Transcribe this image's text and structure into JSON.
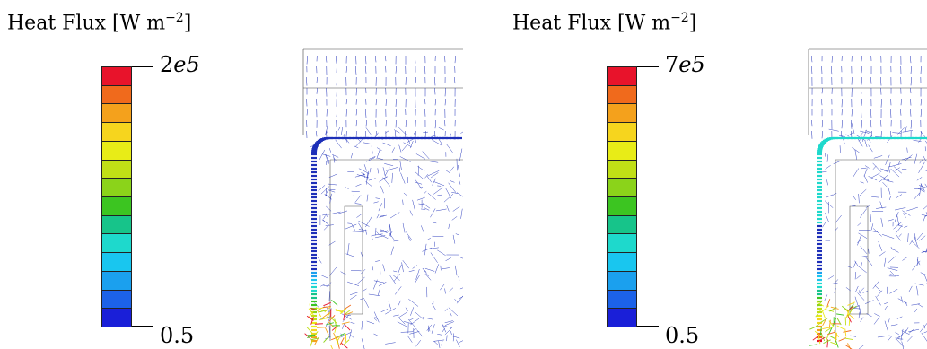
{
  "panels": [
    {
      "title_text": "Heat Flux [W m",
      "title_exp": "−2",
      "title_close": "]",
      "scale_max_mant": "2",
      "scale_max_exp": "e5",
      "scale_min": "0.5"
    },
    {
      "title_text": "Heat Flux [W m",
      "title_exp": "−2",
      "title_close": "]",
      "scale_max_mant": "7",
      "scale_max_exp": "e5",
      "scale_min": "0.5"
    }
  ],
  "colormap": [
    "#e8132b",
    "#f06a1c",
    "#f4a11c",
    "#f6d51e",
    "#e8ec17",
    "#c0df16",
    "#8bd31a",
    "#3cc521",
    "#17c48a",
    "#1ed9cc",
    "#19c6ef",
    "#1ba0ee",
    "#1c62e8",
    "#1a1fd8"
  ],
  "vector_color": "#1d2fb8"
}
